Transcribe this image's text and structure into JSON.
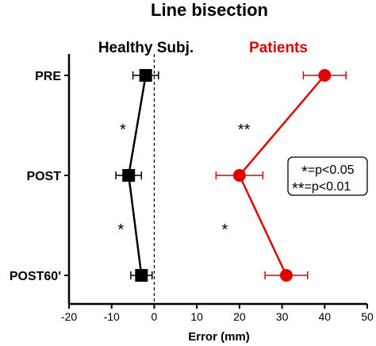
{
  "chart_data": {
    "type": "line",
    "title": "Line bisection",
    "xlabel": "Error (mm)",
    "xlim": [
      -20,
      50
    ],
    "xticks": [
      "-20",
      "-10",
      "0",
      "10",
      "20",
      "30",
      "40",
      "50"
    ],
    "xtick_values": [
      -20,
      -10,
      0,
      10,
      20,
      30,
      40,
      50
    ],
    "categories": [
      "PRE",
      "POST",
      "POST60'"
    ],
    "reference_line_x": 0,
    "series": [
      {
        "name": "Healthy Subj.",
        "color": "#000000",
        "marker": "square",
        "values": [
          -2,
          -6,
          -3
        ],
        "errors": [
          3,
          3,
          2.5
        ]
      },
      {
        "name": "Patients",
        "color": "#e00000",
        "marker": "circle",
        "values": [
          40,
          20,
          31
        ],
        "errors": [
          5,
          5.5,
          5
        ]
      }
    ],
    "annotations": [
      {
        "text": "*",
        "series": 0,
        "between": [
          0,
          1
        ]
      },
      {
        "text": "*",
        "series": 0,
        "between": [
          1,
          2
        ]
      },
      {
        "text": "**",
        "series": 1,
        "between": [
          0,
          1
        ]
      },
      {
        "text": "*",
        "series": 1,
        "between": [
          1,
          2
        ]
      }
    ],
    "legend": {
      "lines": [
        {
          "symbol": "*",
          "text": "=p<0.05"
        },
        {
          "symbol": "**",
          "text": "=p<0.01"
        }
      ]
    }
  }
}
